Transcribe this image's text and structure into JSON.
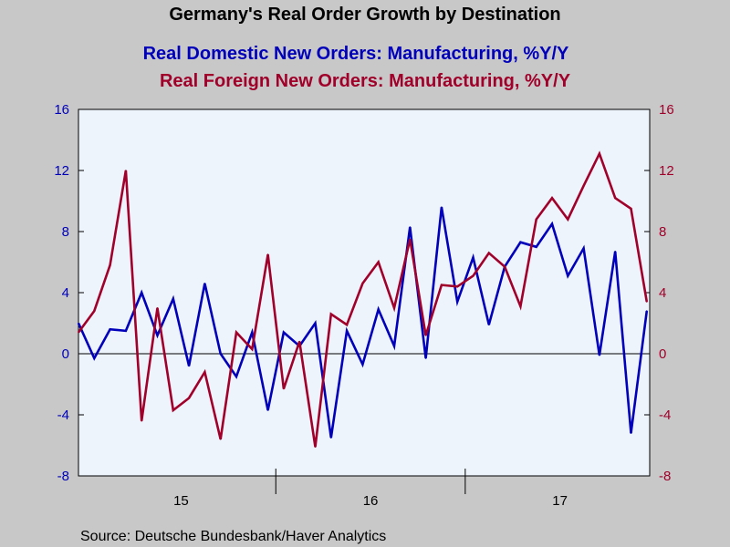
{
  "chart_data": {
    "type": "line",
    "title": "Germany's Real Order Growth by Destination",
    "source": "Source:  Deutsche Bundesbank/Haver Analytics",
    "x_labels": [
      "15",
      "16",
      "17"
    ],
    "y_ticks": [
      16,
      12,
      8,
      4,
      0,
      -4,
      -8
    ],
    "ylim": [
      -8,
      16
    ],
    "y2lim": [
      -8,
      16
    ],
    "grid": false,
    "legend_placement": "top",
    "zero_line": true,
    "colors": {
      "domestic": "#0000bb",
      "foreign": "#a0002a",
      "plot_bg": "#eef4fc",
      "page_bg": "#c8c8c8"
    },
    "x_months": [
      "2014-12",
      "2015-01",
      "2015-02",
      "2015-03",
      "2015-04",
      "2015-05",
      "2015-06",
      "2015-07",
      "2015-08",
      "2015-09",
      "2015-10",
      "2015-11",
      "2015-12",
      "2016-01",
      "2016-02",
      "2016-03",
      "2016-04",
      "2016-05",
      "2016-06",
      "2016-07",
      "2016-08",
      "2016-09",
      "2016-10",
      "2016-11",
      "2016-12",
      "2017-01",
      "2017-02",
      "2017-03",
      "2017-04",
      "2017-05",
      "2017-06",
      "2017-07",
      "2017-08",
      "2017-09",
      "2017-10",
      "2017-11",
      "2017-12"
    ],
    "series": [
      {
        "name": "Real Domestic New Orders: Manufacturing, %Y/Y",
        "color": "#0000bb",
        "axis": "left",
        "values": [
          2.0,
          -0.3,
          1.6,
          1.5,
          4.0,
          1.2,
          3.6,
          -0.8,
          4.6,
          0.0,
          -1.5,
          1.4,
          -3.7,
          1.4,
          0.5,
          2.0,
          -5.5,
          1.5,
          -0.7,
          2.9,
          0.5,
          8.3,
          -0.3,
          9.6,
          3.4,
          6.3,
          1.9,
          5.7,
          7.3,
          7.0,
          8.5,
          5.1,
          6.9,
          -0.1,
          6.7,
          -5.2,
          2.8
        ]
      },
      {
        "name": "Real Foreign New Orders: Manufacturing, %Y/Y",
        "color": "#a0002a",
        "axis": "right",
        "values": [
          1.4,
          2.8,
          5.8,
          12.0,
          -4.4,
          3.0,
          -3.7,
          -2.9,
          -1.2,
          -5.6,
          1.4,
          0.3,
          6.5,
          -2.3,
          0.8,
          -6.1,
          2.6,
          1.9,
          4.6,
          6.0,
          3.0,
          7.5,
          1.2,
          4.5,
          4.4,
          5.1,
          6.6,
          5.7,
          3.1,
          8.8,
          10.2,
          8.8,
          11.0,
          13.1,
          10.2,
          9.5,
          3.4
        ]
      }
    ]
  }
}
